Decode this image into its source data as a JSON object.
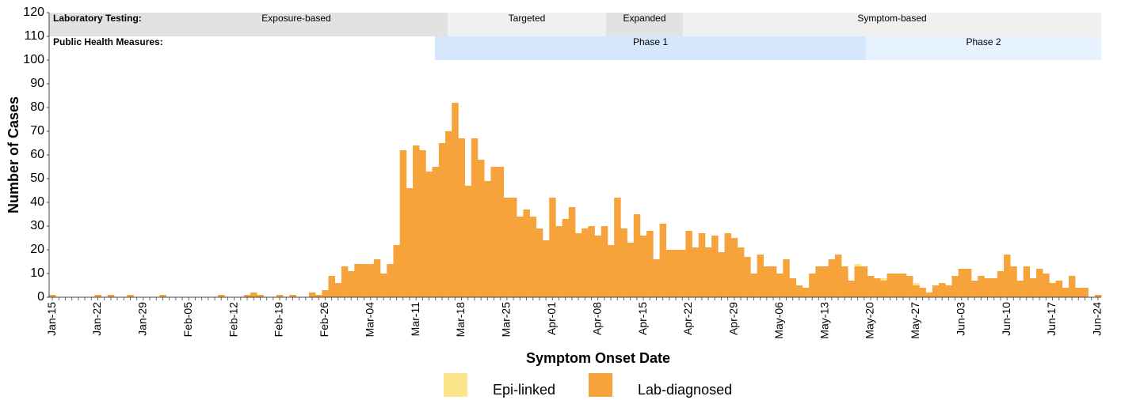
{
  "chart_data": {
    "type": "bar",
    "stacked": true,
    "x_label": "Symptom Onset Date",
    "y_label": "Number of Cases",
    "ylim": [
      0,
      120
    ],
    "yticks": [
      0,
      10,
      20,
      30,
      40,
      50,
      60,
      70,
      80,
      90,
      100,
      110,
      120
    ],
    "grid": false,
    "legend": "bottom",
    "categories": [
      "Jan-15",
      null,
      null,
      null,
      null,
      null,
      null,
      "Jan-22",
      null,
      null,
      null,
      null,
      null,
      null,
      "Jan-29",
      null,
      null,
      null,
      null,
      null,
      null,
      "Feb-05",
      null,
      null,
      null,
      null,
      null,
      null,
      "Feb-12",
      null,
      null,
      null,
      null,
      null,
      null,
      "Feb-19",
      null,
      null,
      null,
      null,
      null,
      null,
      "Feb-26",
      null,
      null,
      null,
      null,
      null,
      null,
      "Mar-04",
      null,
      null,
      null,
      null,
      null,
      null,
      "Mar-11",
      null,
      null,
      null,
      null,
      null,
      null,
      "Mar-18",
      null,
      null,
      null,
      null,
      null,
      null,
      "Mar-25",
      null,
      null,
      null,
      null,
      null,
      null,
      "Apr-01",
      null,
      null,
      null,
      null,
      null,
      null,
      "Apr-08",
      null,
      null,
      null,
      null,
      null,
      null,
      "Apr-15",
      null,
      null,
      null,
      null,
      null,
      null,
      "Apr-22",
      null,
      null,
      null,
      null,
      null,
      null,
      "Apr-29",
      null,
      null,
      null,
      null,
      null,
      null,
      "May-06",
      null,
      null,
      null,
      null,
      null,
      null,
      "May-13",
      null,
      null,
      null,
      null,
      null,
      null,
      "May-20",
      null,
      null,
      null,
      null,
      null,
      null,
      "May-27",
      null,
      null,
      null,
      null,
      null,
      null,
      "Jun-03",
      null,
      null,
      null,
      null,
      null,
      null,
      "Jun-10",
      null,
      null,
      null,
      null,
      null,
      null,
      "Jun-17",
      null,
      null,
      null,
      null,
      null,
      null,
      "Jun-24"
    ],
    "series": [
      {
        "name": "Epi-linked",
        "color": "#fce58a",
        "values": [
          0,
          0,
          0,
          0,
          0,
          0,
          0,
          0,
          0,
          0,
          0,
          0,
          0,
          0,
          0,
          0,
          0,
          0,
          0,
          0,
          0,
          0,
          0,
          0,
          0,
          0,
          0,
          0,
          0,
          0,
          0,
          0,
          0,
          0,
          0,
          0,
          0,
          0,
          0,
          0,
          0,
          0,
          0,
          0,
          0,
          0,
          0,
          0,
          0,
          0,
          0,
          0,
          0,
          0,
          0,
          0,
          0,
          0,
          0,
          0,
          0,
          0,
          0,
          0,
          0,
          0,
          0,
          0,
          0,
          0,
          0,
          0,
          0,
          0,
          0,
          0,
          0,
          0,
          0,
          0,
          0,
          0,
          0,
          0,
          0,
          0,
          0,
          0,
          0,
          0,
          0,
          0,
          0,
          0,
          0,
          0,
          0,
          0,
          0,
          0,
          0,
          0,
          0,
          0,
          0,
          0,
          0,
          0,
          0,
          0,
          0,
          0,
          0,
          0,
          0,
          0,
          0,
          0,
          0,
          0,
          0,
          0,
          0,
          0,
          1,
          0,
          0,
          0,
          1,
          0,
          0,
          0,
          0,
          1,
          0,
          0,
          0,
          0,
          0,
          0,
          0,
          0,
          0,
          0,
          0,
          0,
          0,
          0,
          0,
          0,
          0,
          0,
          0,
          0,
          0,
          0,
          0,
          0,
          0,
          0,
          0,
          0
        ]
      },
      {
        "name": "Lab-diagnosed",
        "color": "#f7a33c",
        "values": [
          1,
          0,
          0,
          0,
          0,
          0,
          0,
          1,
          0,
          1,
          0,
          0,
          1,
          0,
          0,
          0,
          0,
          1,
          0,
          0,
          0,
          0,
          0,
          0,
          0,
          0,
          1,
          0,
          0,
          0,
          1,
          2,
          1,
          0,
          0,
          1,
          0,
          1,
          0,
          0,
          2,
          1,
          3,
          9,
          6,
          13,
          11,
          14,
          14,
          14,
          16,
          10,
          14,
          22,
          62,
          46,
          64,
          62,
          53,
          55,
          65,
          70,
          82,
          67,
          47,
          67,
          58,
          49,
          55,
          55,
          42,
          42,
          34,
          37,
          34,
          29,
          24,
          42,
          30,
          33,
          38,
          27,
          29,
          30,
          26,
          30,
          22,
          42,
          29,
          23,
          35,
          26,
          28,
          16,
          31,
          20,
          20,
          20,
          28,
          21,
          27,
          21,
          26,
          19,
          27,
          25,
          21,
          17,
          10,
          18,
          13,
          13,
          10,
          16,
          8,
          5,
          4,
          10,
          13,
          13,
          16,
          18,
          13,
          7,
          13,
          13,
          9,
          8,
          7,
          10,
          10,
          10,
          9,
          5,
          4,
          2,
          5,
          6,
          5,
          9,
          12,
          12,
          7,
          9,
          8,
          8,
          11,
          18,
          13,
          7,
          13,
          8,
          12,
          10,
          6,
          7,
          4,
          9,
          4,
          4,
          0,
          1
        ]
      }
    ],
    "annotations": {
      "laboratory_testing": {
        "label": "Laboratory Testing:",
        "phases": [
          "Exposure-based",
          "Targeted",
          "Expanded",
          "Symptom-based"
        ]
      },
      "public_health_measures": {
        "label": "Public Health Measures:",
        "phases": [
          "Phase 1",
          "Phase 2"
        ]
      }
    }
  }
}
